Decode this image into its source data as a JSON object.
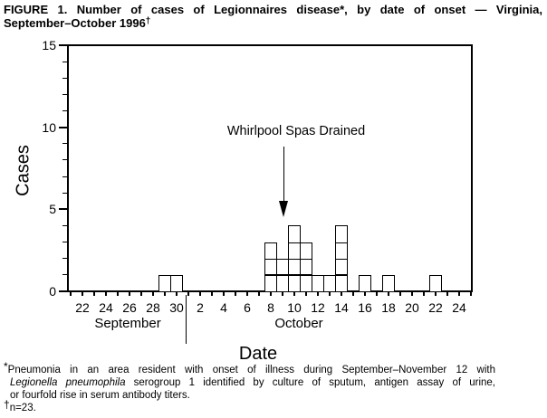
{
  "title": {
    "line1": "FIGURE 1. Number of cases of Legionnaires disease*, by date of onset — Virginia,",
    "line2_text": "September–October 1996",
    "line2_marker": "†"
  },
  "chart_data": {
    "type": "bar",
    "description": "Epidemic curve histogram; each small box represents one case",
    "ylabel": "Cases",
    "xlabel": "Date",
    "ylim": [
      0,
      15
    ],
    "yticks": [
      "0",
      "5",
      "10",
      "15"
    ],
    "x_axis": {
      "months": [
        {
          "name": "September",
          "tick_labels": [
            "22",
            "24",
            "26",
            "28",
            "30"
          ],
          "first_label_day": 22
        },
        {
          "name": "October",
          "tick_labels": [
            "2",
            "4",
            "6",
            "8",
            "10",
            "12",
            "14",
            "16",
            "18",
            "20",
            "22",
            "24"
          ],
          "first_label_day": 2
        }
      ]
    },
    "cases": [
      {
        "month": "September",
        "day": 29,
        "count": 1
      },
      {
        "month": "September",
        "day": 30,
        "count": 1
      },
      {
        "month": "October",
        "day": 8,
        "count": 3
      },
      {
        "month": "October",
        "day": 9,
        "count": 2
      },
      {
        "month": "October",
        "day": 10,
        "count": 4
      },
      {
        "month": "October",
        "day": 11,
        "count": 3
      },
      {
        "month": "October",
        "day": 12,
        "count": 1
      },
      {
        "month": "October",
        "day": 13,
        "count": 1
      },
      {
        "month": "October",
        "day": 14,
        "count": 4
      },
      {
        "month": "October",
        "day": 16,
        "count": 1
      },
      {
        "month": "October",
        "day": 18,
        "count": 1
      },
      {
        "month": "October",
        "day": 22,
        "count": 1
      }
    ],
    "total_cases": 23,
    "annotation": {
      "text": "Whirlpool Spas Drained",
      "points_to": {
        "month": "October",
        "day": 9
      }
    }
  },
  "footnotes": {
    "marker1": "*",
    "f1_line1": "Pneumonia in an area resident with onset of illness during September–November 12 with",
    "f1_italic": "Legionella pneumophila",
    "f1_line2_rest": " serogroup 1 identified by culture of sputum, antigen assay of urine,",
    "f1_line3": "or fourfold rise in serum antibody titers.",
    "marker2": "†",
    "f2": "n=23."
  }
}
